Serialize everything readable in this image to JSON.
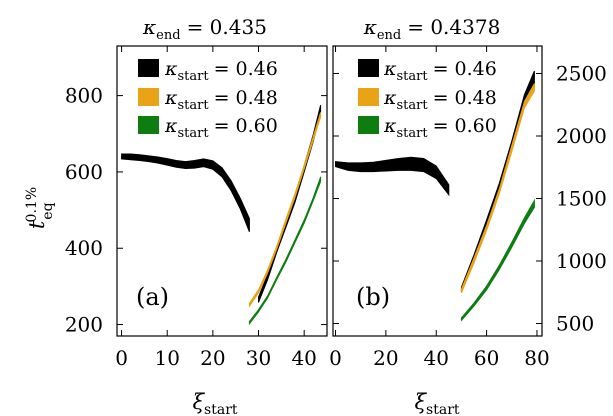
{
  "chart_data": [
    {
      "panel": "a",
      "type": "area",
      "title_var": "κ",
      "title_sub": "end",
      "title_value": "= 0.435",
      "tag": "(a)",
      "xlabel_var": "ξ",
      "xlabel_sub": "start",
      "ylabel_var": "t",
      "ylabel_sub": "eq",
      "ylabel_sup": "0.1%",
      "xlim": [
        -1,
        45
      ],
      "ylim": [
        170,
        930
      ],
      "xticks": [
        0,
        10,
        20,
        30,
        40
      ],
      "yticks": [
        200,
        400,
        600,
        800
      ],
      "legend_position": "top-right",
      "series": [
        {
          "name_var": "κ",
          "name_sub": "start",
          "name_value": "= 0.46",
          "color": "#000000",
          "x": [
            0,
            2,
            4,
            6,
            8,
            10,
            12,
            14,
            16,
            18,
            20,
            22,
            24,
            26,
            28,
            30,
            32,
            34,
            36,
            38,
            40,
            42,
            43.6
          ],
          "lower": [
            634,
            632,
            630,
            627,
            623,
            618,
            612,
            609,
            610,
            614,
            607,
            587,
            551,
            503,
            443,
            258,
            318,
            390,
            455,
            520,
            600,
            680,
            757
          ],
          "upper": [
            647,
            647,
            645,
            642,
            639,
            635,
            630,
            627,
            630,
            634,
            629,
            611,
            577,
            531,
            478,
            272,
            332,
            404,
            470,
            536,
            617,
            698,
            775
          ]
        },
        {
          "name_var": "κ",
          "name_sub": "start",
          "name_value": "= 0.48",
          "color": "#e8a317",
          "x": [
            28,
            30,
            32,
            34,
            36,
            38,
            40,
            42,
            43.6
          ],
          "lower": [
            248,
            283,
            336,
            398,
            466,
            533,
            608,
            683,
            744
          ],
          "upper": [
            256,
            291,
            344,
            406,
            476,
            543,
            618,
            693,
            756
          ]
        },
        {
          "name_var": "κ",
          "name_sub": "start",
          "name_value": "= 0.60",
          "color": "#0e7d10",
          "x": [
            28,
            30,
            32,
            34,
            36,
            38,
            40,
            42,
            43.6
          ],
          "lower": [
            202,
            233,
            270,
            318,
            364,
            415,
            466,
            525,
            575
          ],
          "upper": [
            208,
            239,
            276,
            324,
            371,
            422,
            474,
            533,
            587
          ]
        }
      ]
    },
    {
      "panel": "b",
      "type": "area",
      "title_var": "κ",
      "title_sub": "end",
      "title_value": "= 0.4378",
      "tag": "(b)",
      "xlabel_var": "ξ",
      "xlabel_sub": "start",
      "xlim": [
        -1,
        82
      ],
      "ylim": [
        400,
        2720
      ],
      "xticks": [
        0,
        20,
        40,
        60,
        80
      ],
      "yticks": [
        500,
        1000,
        1500,
        2000,
        2500
      ],
      "legend_position": "top-right",
      "series": [
        {
          "name_var": "κ",
          "name_sub": "start",
          "name_value": "= 0.46",
          "color": "#000000",
          "x": [
            0,
            5,
            10,
            15,
            20,
            25,
            30,
            35,
            40,
            45,
            50,
            55,
            60,
            65,
            70,
            75,
            79
          ],
          "lower": [
            1755,
            1725,
            1715,
            1715,
            1720,
            1725,
            1725,
            1715,
            1660,
            1530,
            750,
            1000,
            1270,
            1560,
            1900,
            2250,
            2400
          ],
          "upper": [
            1795,
            1785,
            1785,
            1790,
            1805,
            1820,
            1830,
            1820,
            1760,
            1610,
            790,
            1050,
            1330,
            1620,
            1960,
            2330,
            2520
          ]
        },
        {
          "name_var": "κ",
          "name_sub": "start",
          "name_value": "= 0.48",
          "color": "#e8a317",
          "x": [
            50,
            55,
            60,
            65,
            70,
            75,
            79
          ],
          "lower": [
            745,
            985,
            1245,
            1535,
            1875,
            2225,
            2360
          ],
          "upper": [
            775,
            1025,
            1285,
            1575,
            1925,
            2275,
            2420
          ]
        },
        {
          "name_var": "κ",
          "name_sub": "start",
          "name_value": "= 0.60",
          "color": "#0e7d10",
          "x": [
            50,
            55,
            60,
            65,
            70,
            75,
            79
          ],
          "lower": [
            525,
            640,
            770,
            930,
            1110,
            1300,
            1430
          ],
          "upper": [
            545,
            665,
            800,
            965,
            1150,
            1345,
            1485
          ]
        }
      ]
    }
  ]
}
